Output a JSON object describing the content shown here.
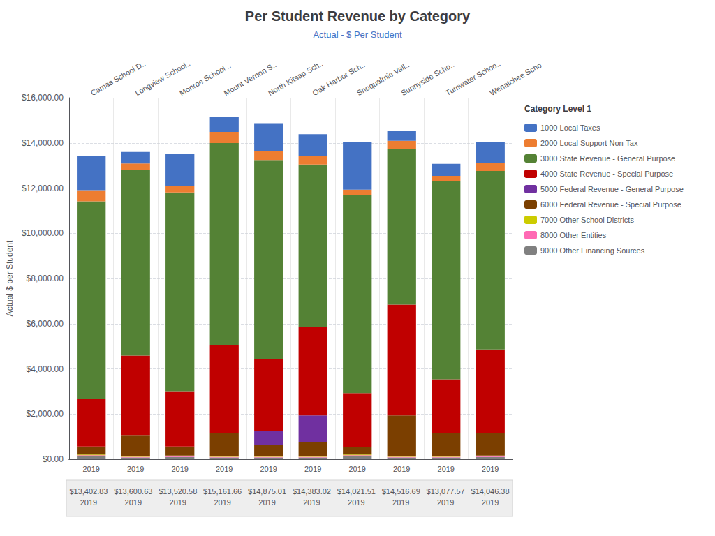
{
  "chart_data": {
    "type": "bar",
    "title": "Per Student Revenue by Category",
    "subtitle": "Actual - $ Per Student",
    "y_label": "Actual $ per Student",
    "categories": [
      "Camas School D..",
      "Longview School..",
      "Monroe School ..",
      "Mount Vernon S..",
      "North Kitsap Sch..",
      "Oak Harbor Sch..",
      "Snoqualmie Vall..",
      "Sunnyside Scho..",
      "Tumwater Schoo..",
      "Wenatchee Scho."
    ],
    "series": [
      {
        "name": "9000 Other Financing Sources",
        "color": "#808080",
        "values": [
          150,
          80,
          100,
          80,
          80,
          80,
          150,
          80,
          80,
          100
        ]
      },
      {
        "name": "8000 Other Entities",
        "color": "#FF69B4",
        "values": [
          30,
          30,
          30,
          30,
          30,
          30,
          30,
          30,
          30,
          30
        ]
      },
      {
        "name": "7000 Other School Districts",
        "color": "#CCCC00",
        "values": [
          30,
          30,
          30,
          30,
          30,
          30,
          30,
          30,
          30,
          30
        ]
      },
      {
        "name": "6000 Federal Revenue - Special Purpose",
        "color": "#7B3F00",
        "values": [
          350,
          900,
          400,
          1000,
          500,
          600,
          320,
          1800,
          1000,
          1000
        ]
      },
      {
        "name": "5000 Federal Revenue - General Purpose",
        "color": "#7030A0",
        "values": [
          0,
          0,
          0,
          0,
          600,
          1200,
          0,
          0,
          0,
          0
        ]
      },
      {
        "name": "4000 State Revenue - Special Purpose",
        "color": "#C00000",
        "values": [
          2100,
          3550,
          2450,
          3900,
          3200,
          3900,
          2400,
          4900,
          2400,
          3700
        ]
      },
      {
        "name": "3000 State Revenue - General Purpose",
        "color": "#548235",
        "values": [
          8750,
          8200,
          8800,
          8950,
          8800,
          7200,
          8750,
          6900,
          8750,
          7900
        ]
      },
      {
        "name": "2000 Local Support Non-Tax",
        "color": "#ED7D31",
        "values": [
          500,
          300,
          300,
          500,
          400,
          400,
          250,
          350,
          250,
          350
        ]
      },
      {
        "name": "1000 Local Taxes",
        "color": "#4472C4",
        "values": [
          1492,
          510,
          1410,
          671,
          1235,
          943,
          2091,
          426,
          537,
          936
        ]
      }
    ],
    "stacked": true,
    "ylim": [
      0,
      16000
    ],
    "yticks": [
      {
        "value": 0,
        "label": "$0.00"
      },
      {
        "value": 2000,
        "label": "$2,000.00"
      },
      {
        "value": 4000,
        "label": "$4,000.00"
      },
      {
        "value": 6000,
        "label": "$6,000.00"
      },
      {
        "value": 8000,
        "label": "$8,000.00"
      },
      {
        "value": 10000,
        "label": "$10,000.00"
      },
      {
        "value": 12000,
        "label": "$12,000.00"
      },
      {
        "value": 14000,
        "label": "$14,000.00"
      },
      {
        "value": 16000,
        "label": "$16,000.00"
      }
    ],
    "grid": true,
    "legend": "right",
    "legend_title": "Category Level 1",
    "year_label": "2019",
    "totals": [
      13402.83,
      13600.63,
      13520.58,
      15161.66,
      14875.01,
      14383.02,
      14021.51,
      14516.69,
      13077.57,
      14046.38
    ],
    "total_labels": [
      "$13,402.83",
      "$13,600.63",
      "$13,520.58",
      "$15,161.66",
      "$14,875.01",
      "$14,383.02",
      "$14,021.51",
      "$14,516.69",
      "$13,077.57",
      "$14,046.38"
    ]
  }
}
